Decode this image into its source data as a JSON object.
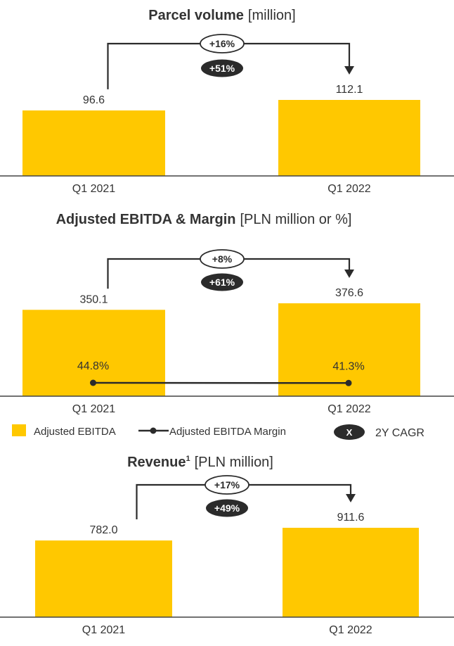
{
  "colors": {
    "bar": "#FFC800",
    "text": "#333333",
    "dark": "#2b2b2b",
    "axis": "#444444"
  },
  "chart_data": [
    {
      "type": "bar",
      "title": "Parcel volume",
      "unit": "[million]",
      "categories": [
        "Q1 2021",
        "Q1 2022"
      ],
      "values": [
        96.6,
        112.1
      ],
      "value_labels": [
        "96.6",
        "112.1"
      ],
      "growth_label": "+16%",
      "cagr_label": "+51%",
      "ylim": [
        0,
        115
      ]
    },
    {
      "type": "bar",
      "title": "Adjusted EBITDA & Margin",
      "unit": "[PLN million or %]",
      "categories": [
        "Q1 2021",
        "Q1 2022"
      ],
      "values": [
        350.1,
        376.6
      ],
      "value_labels": [
        "350.1",
        "376.6"
      ],
      "growth_label": "+8%",
      "cagr_label": "+61%",
      "ylim": [
        0,
        380
      ],
      "line_series": {
        "name": "Adjusted EBITDA Margin",
        "values": [
          44.8,
          41.3
        ],
        "value_labels": [
          "44.8%",
          "41.3%"
        ],
        "ylim": [
          0,
          100
        ]
      }
    },
    {
      "type": "bar",
      "title": "Revenue",
      "title_sup": "1",
      "unit": "[PLN million]",
      "categories": [
        "Q1 2021",
        "Q1 2022"
      ],
      "values": [
        782.0,
        911.6
      ],
      "value_labels": [
        "782.0",
        "911.6"
      ],
      "growth_label": "+17%",
      "cagr_label": "+49%",
      "ylim": [
        0,
        1000
      ]
    }
  ],
  "legend": {
    "bar_label": "Adjusted EBITDA",
    "line_label": "Adjusted EBITDA Margin",
    "cagr_badge": "X",
    "cagr_label": "2Y CAGR"
  }
}
